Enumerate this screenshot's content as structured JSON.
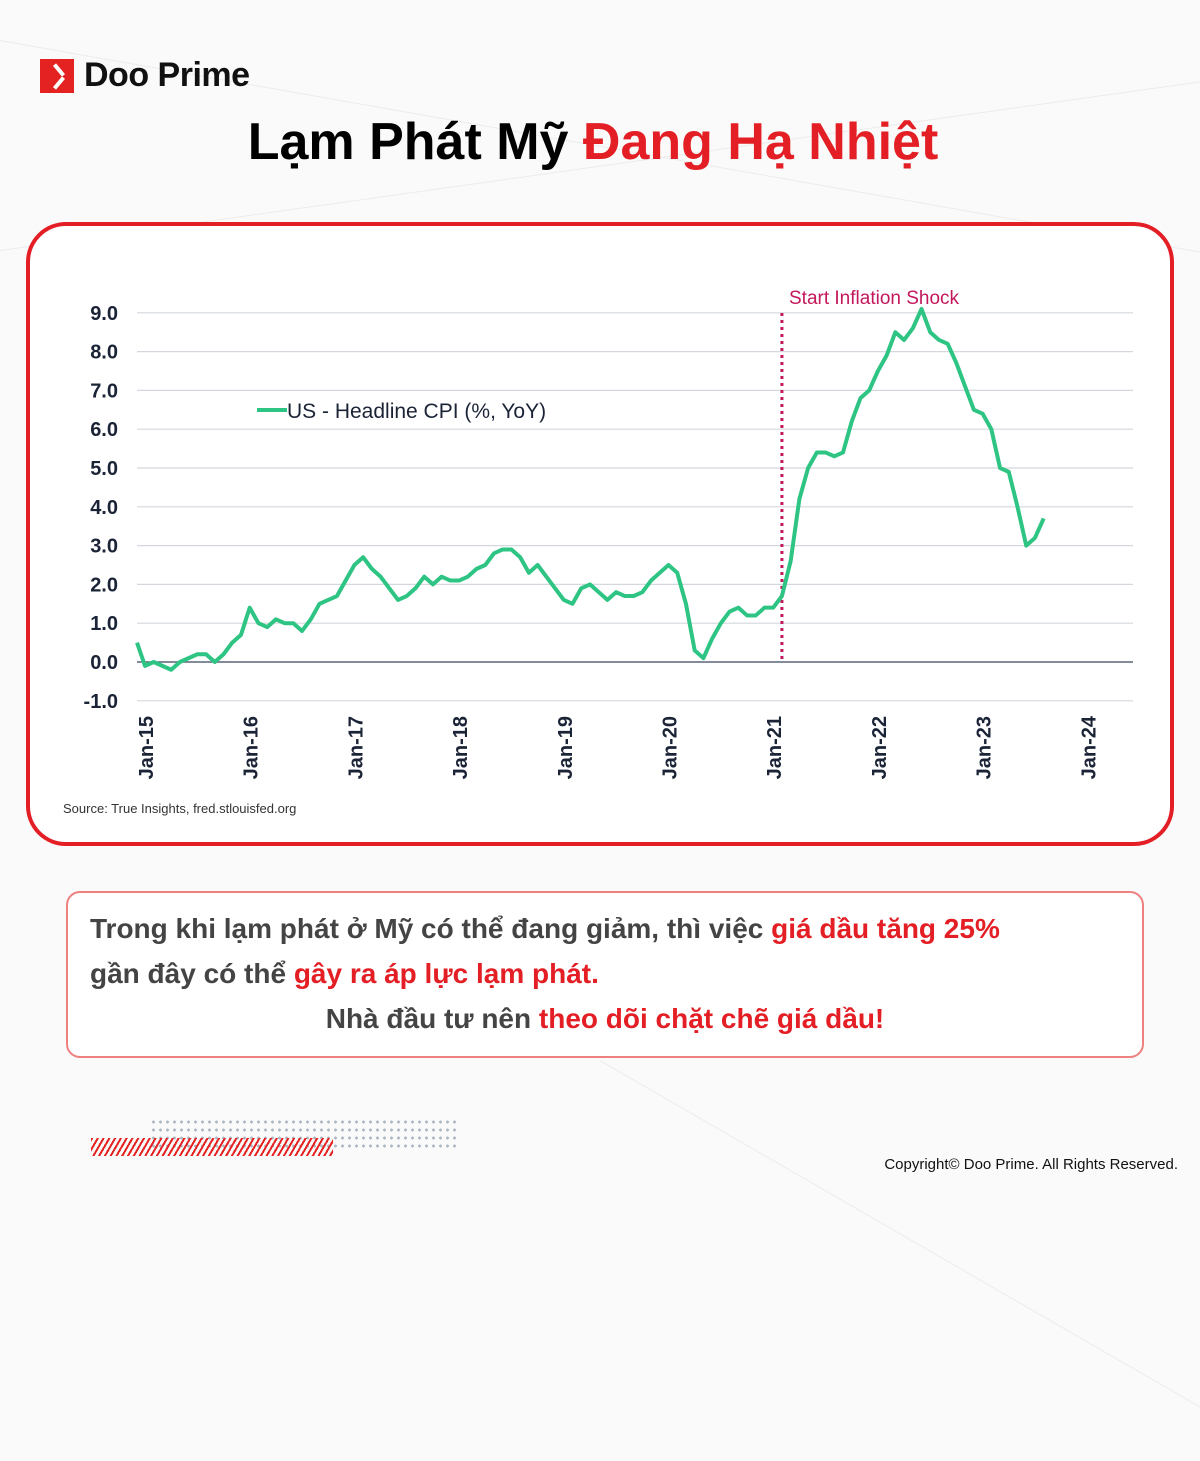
{
  "brand": {
    "name": "Doo Prime",
    "accent": "#e31e24"
  },
  "title": {
    "part1": "Lạm Phát Mỹ ",
    "part2": "Đang Hạ Nhiệt"
  },
  "chart_data": {
    "type": "line",
    "legend": "US - Headline CPI (%, YoY)",
    "legend_placement": "top-left",
    "series_color": "#2ec483",
    "annotation": {
      "label": "Start Inflation Shock",
      "x": "2021-02",
      "color": "#c2185b"
    },
    "yticks": [
      "9.0",
      "8.0",
      "7.0",
      "6.0",
      "5.0",
      "4.0",
      "3.0",
      "2.0",
      "1.0",
      "0.0",
      "-1.0"
    ],
    "ylim": [
      -1,
      9
    ],
    "xticks": [
      "Jan-15",
      "Jan-16",
      "Jan-17",
      "Jan-18",
      "Jan-19",
      "Jan-20",
      "Jan-21",
      "Jan-22",
      "Jan-23",
      "Jan-24"
    ],
    "grid": true,
    "start": "2014-12",
    "values": [
      0.5,
      -0.1,
      0.0,
      -0.1,
      -0.2,
      0.0,
      0.1,
      0.2,
      0.2,
      0.0,
      0.2,
      0.5,
      0.7,
      1.4,
      1.0,
      0.9,
      1.1,
      1.0,
      1.0,
      0.8,
      1.1,
      1.5,
      1.6,
      1.7,
      2.1,
      2.5,
      2.7,
      2.4,
      2.2,
      1.9,
      1.6,
      1.7,
      1.9,
      2.2,
      2.0,
      2.2,
      2.1,
      2.1,
      2.2,
      2.4,
      2.5,
      2.8,
      2.9,
      2.9,
      2.7,
      2.3,
      2.5,
      2.2,
      1.9,
      1.6,
      1.5,
      1.9,
      2.0,
      1.8,
      1.6,
      1.8,
      1.7,
      1.7,
      1.8,
      2.1,
      2.3,
      2.5,
      2.3,
      1.5,
      0.3,
      0.1,
      0.6,
      1.0,
      1.3,
      1.4,
      1.2,
      1.2,
      1.4,
      1.4,
      1.7,
      2.6,
      4.2,
      5.0,
      5.4,
      5.4,
      5.3,
      5.4,
      6.2,
      6.8,
      7.0,
      7.5,
      7.9,
      8.5,
      8.3,
      8.6,
      9.1,
      8.5,
      8.3,
      8.2,
      7.7,
      7.1,
      6.5,
      6.4,
      6.0,
      5.0,
      4.9,
      4.0,
      3.0,
      3.2,
      3.7
    ]
  },
  "source": "Source: True Insights, fred.stlouisfed.org",
  "message": {
    "l1a": "Trong khi lạm phát ở Mỹ có thể đang giảm, thì việc ",
    "l1b": "giá dầu tăng 25%",
    "l2a": "gần đây có thể ",
    "l2b": "gây ra áp lực lạm phát.",
    "l3a": "Nhà đầu tư nên ",
    "l3b": "theo dõi chặt chẽ giá dầu!"
  },
  "copyright": "Copyright© Doo Prime. All Rights Reserved."
}
